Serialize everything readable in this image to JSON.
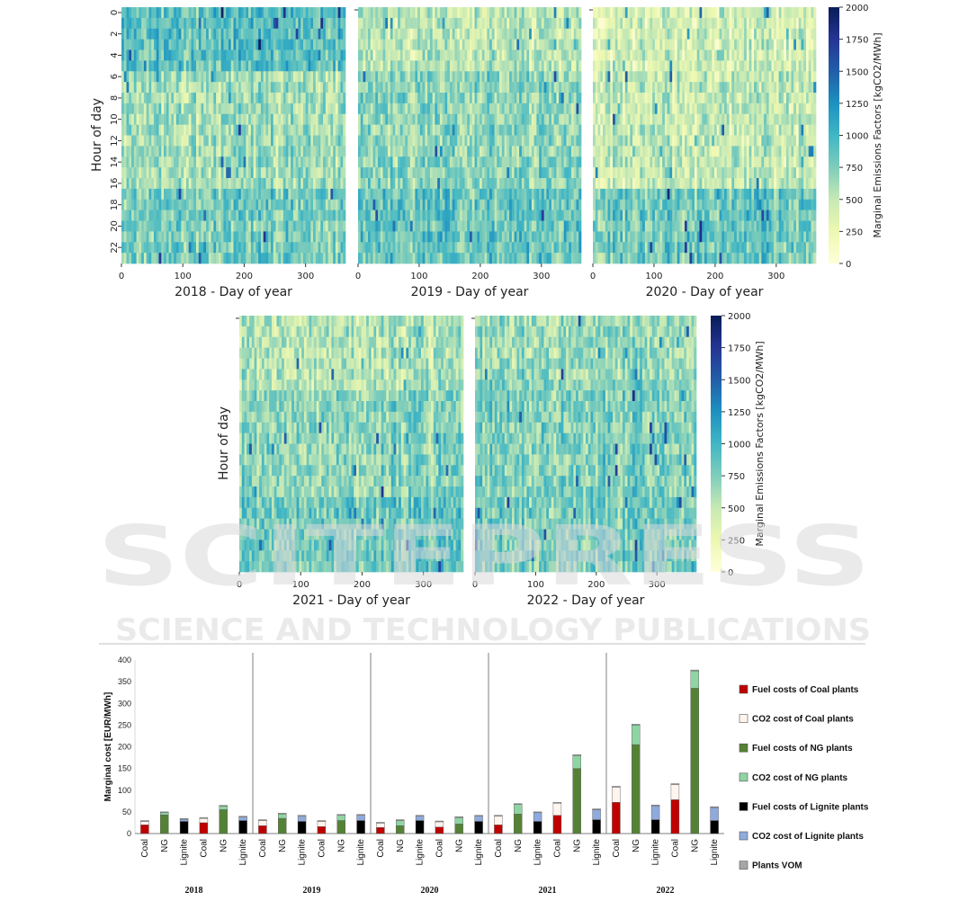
{
  "heatmaps": {
    "colorbar_label": "Marginal Emissions Factors [kgCO2/MWh]",
    "colorbar_ticks": [
      0,
      250,
      500,
      750,
      1000,
      1250,
      1500,
      1750,
      2000
    ],
    "hour_axis_label": "Hour of day",
    "hour_ticks": [
      0,
      2,
      4,
      6,
      8,
      10,
      12,
      14,
      16,
      18,
      20,
      22
    ],
    "day_ticks": [
      0,
      100,
      200,
      300
    ],
    "colors": [
      "#ffffd9",
      "#edf8b1",
      "#c7e9b4",
      "#7fcdbb",
      "#41b6c4",
      "#1d91c0",
      "#225ea8",
      "#253494",
      "#081d58"
    ],
    "panels": [
      {
        "title": "2018 - Day of year"
      },
      {
        "title": "2019 - Day of year"
      },
      {
        "title": "2020 - Day of year"
      },
      {
        "title": "2021 - Day of year"
      },
      {
        "title": "2022 - Day of year"
      }
    ]
  },
  "watermark": {
    "line1": "SCITEPRESS",
    "line2": "SCIENCE AND TECHNOLOGY PUBLICATIONS"
  },
  "chart_data": {
    "type": "bar",
    "stacked": true,
    "ylabel": "Marginal cost  [EUR/MWh]",
    "ylim": [
      0,
      400
    ],
    "yticks": [
      0,
      50,
      100,
      150,
      200,
      250,
      300,
      350,
      400
    ],
    "groups": [
      {
        "label": "2018",
        "bars": [
          {
            "category": "Coal",
            "segments": [
              20,
              8,
              0,
              0,
              0,
              0,
              2
            ]
          },
          {
            "category": "NG",
            "segments": [
              0,
              0,
              43,
              5,
              0,
              0,
              2
            ]
          },
          {
            "category": "Lignite",
            "segments": [
              0,
              0,
              0,
              0,
              28,
              5,
              2
            ]
          },
          {
            "category": "Coal",
            "segments": [
              25,
              10,
              0,
              0,
              0,
              0,
              2
            ]
          },
          {
            "category": "NG",
            "segments": [
              0,
              0,
              55,
              8,
              0,
              0,
              2
            ]
          },
          {
            "category": "Lignite",
            "segments": [
              0,
              0,
              0,
              0,
              30,
              8,
              2
            ]
          }
        ]
      },
      {
        "label": "2019",
        "bars": [
          {
            "category": "Coal",
            "segments": [
              18,
              12,
              0,
              0,
              0,
              0,
              2
            ]
          },
          {
            "category": "NG",
            "segments": [
              0,
              0,
              35,
              10,
              0,
              0,
              2
            ]
          },
          {
            "category": "Lignite",
            "segments": [
              0,
              0,
              0,
              0,
              28,
              12,
              2
            ]
          },
          {
            "category": "Coal",
            "segments": [
              16,
              12,
              0,
              0,
              0,
              0,
              2
            ]
          },
          {
            "category": "NG",
            "segments": [
              0,
              0,
              30,
              12,
              0,
              0,
              2
            ]
          },
          {
            "category": "Lignite",
            "segments": [
              0,
              0,
              0,
              0,
              30,
              12,
              2
            ]
          }
        ]
      },
      {
        "label": "2020",
        "bars": [
          {
            "category": "Coal",
            "segments": [
              14,
              10,
              0,
              0,
              0,
              0,
              2
            ]
          },
          {
            "category": "NG",
            "segments": [
              0,
              0,
              18,
              12,
              0,
              0,
              2
            ]
          },
          {
            "category": "Lignite",
            "segments": [
              0,
              0,
              0,
              0,
              30,
              10,
              2
            ]
          },
          {
            "category": "Coal",
            "segments": [
              15,
              12,
              0,
              0,
              0,
              0,
              2
            ]
          },
          {
            "category": "NG",
            "segments": [
              0,
              0,
              22,
              15,
              0,
              0,
              2
            ]
          },
          {
            "category": "Lignite",
            "segments": [
              0,
              0,
              0,
              0,
              28,
              12,
              2
            ]
          }
        ]
      },
      {
        "label": "2021",
        "bars": [
          {
            "category": "Coal",
            "segments": [
              20,
              20,
              0,
              0,
              0,
              0,
              2
            ]
          },
          {
            "category": "NG",
            "segments": [
              0,
              0,
              45,
              22,
              0,
              0,
              2
            ]
          },
          {
            "category": "Lignite",
            "segments": [
              0,
              0,
              0,
              0,
              28,
              20,
              2
            ]
          },
          {
            "category": "Coal",
            "segments": [
              42,
              28,
              0,
              0,
              0,
              0,
              2
            ]
          },
          {
            "category": "NG",
            "segments": [
              0,
              0,
              150,
              30,
              0,
              0,
              2
            ]
          },
          {
            "category": "Lignite",
            "segments": [
              0,
              0,
              0,
              0,
              32,
              23,
              2
            ]
          }
        ]
      },
      {
        "label": "2022",
        "bars": [
          {
            "category": "Coal",
            "segments": [
              72,
              35,
              0,
              0,
              0,
              0,
              2
            ]
          },
          {
            "category": "NG",
            "segments": [
              0,
              0,
              205,
              45,
              0,
              0,
              2
            ]
          },
          {
            "category": "Lignite",
            "segments": [
              0,
              0,
              0,
              0,
              32,
              32,
              2
            ]
          },
          {
            "category": "Coal",
            "segments": [
              78,
              35,
              0,
              0,
              0,
              0,
              2
            ]
          },
          {
            "category": "NG",
            "segments": [
              0,
              0,
              335,
              40,
              0,
              0,
              2
            ]
          },
          {
            "category": "Lignite",
            "segments": [
              0,
              0,
              0,
              0,
              30,
              30,
              2
            ]
          }
        ]
      }
    ],
    "legend": [
      {
        "name": "Fuel costs of Coal plants",
        "color": "#c00000"
      },
      {
        "name": "CO2 cost of Coal plants",
        "color": "#fff4ee"
      },
      {
        "name": "Fuel costs of NG plants",
        "color": "#548235"
      },
      {
        "name": "CO2 cost of NG plants",
        "color": "#8fd4a3"
      },
      {
        "name": "Fuel costs of Lignite plants",
        "color": "#000000"
      },
      {
        "name": "CO2 cost of Lignite plants",
        "color": "#8faadc"
      },
      {
        "name": "Plants VOM",
        "color": "#a6a6a6"
      }
    ],
    "legend_position": "right"
  }
}
